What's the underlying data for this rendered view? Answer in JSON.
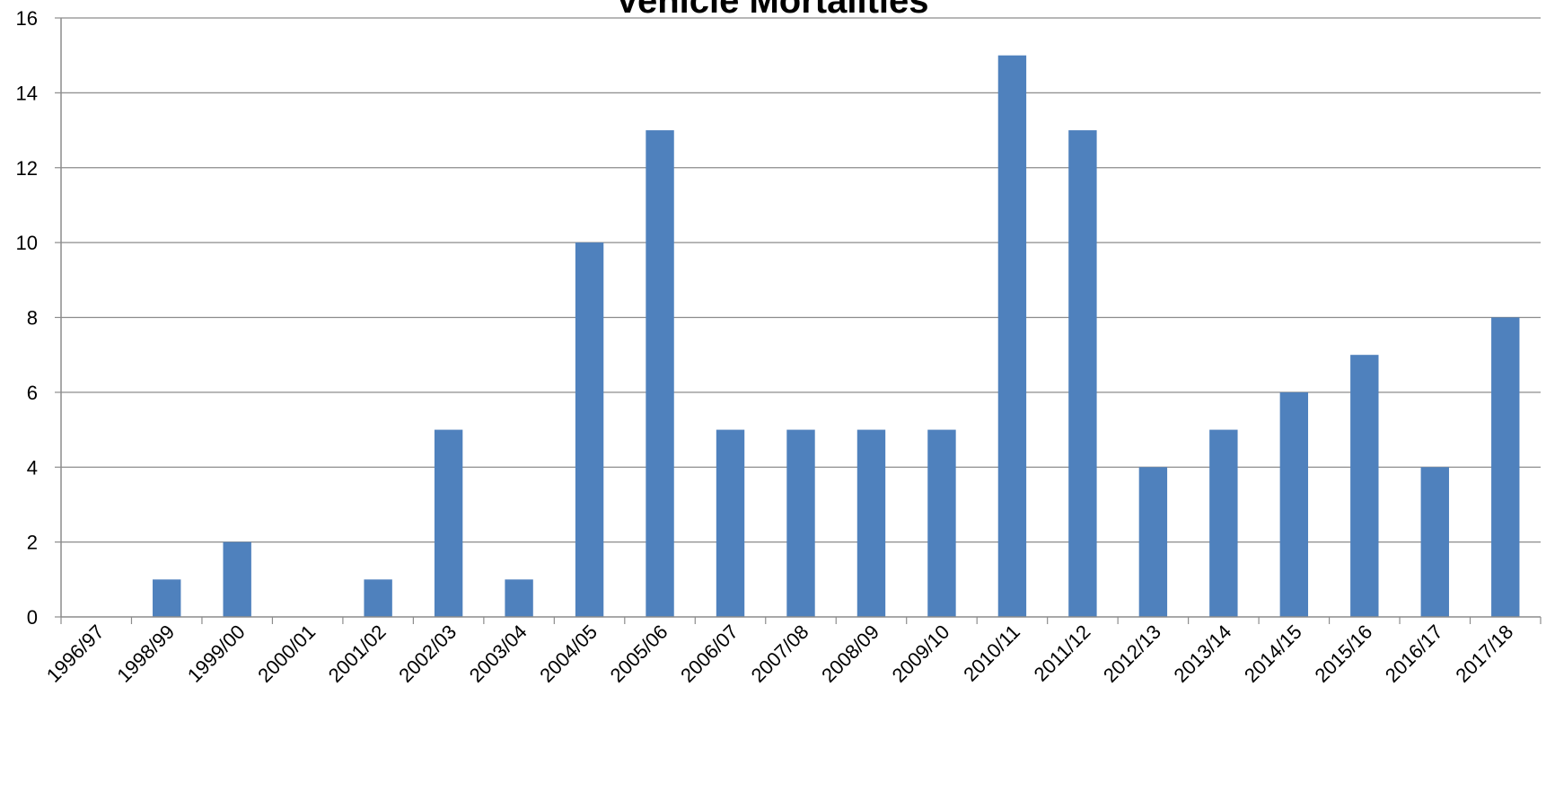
{
  "chart_data": {
    "type": "bar",
    "title": "Vehicle Mortalities",
    "xlabel": "",
    "ylabel": "",
    "categories": [
      "1996/97",
      "1998/99",
      "1999/00",
      "2000/01",
      "2001/02",
      "2002/03",
      "2003/04",
      "2004/05",
      "2005/06",
      "2006/07",
      "2007/08",
      "2008/09",
      "2009/10",
      "2010/11",
      "2011/12",
      "2012/13",
      "2013/14",
      "2014/15",
      "2015/16",
      "2016/17",
      "2017/18"
    ],
    "series": [
      {
        "values": [
          0,
          1,
          2,
          0,
          1,
          5,
          1,
          10,
          13,
          5,
          5,
          5,
          5,
          15,
          13,
          4,
          5,
          6,
          7,
          4,
          8
        ],
        "color": "#4f81bd"
      }
    ],
    "ylim": [
      0,
      16
    ],
    "yticks": [
      0,
      2,
      4,
      6,
      8,
      10,
      12,
      14,
      16
    ],
    "grid": true,
    "legend": "none"
  }
}
